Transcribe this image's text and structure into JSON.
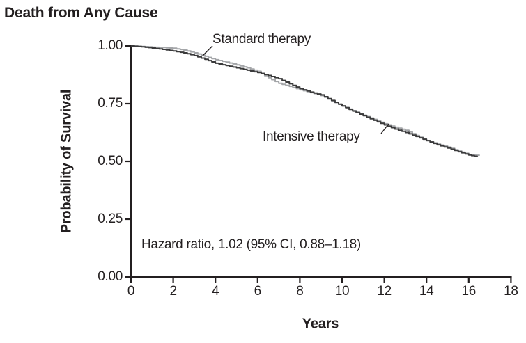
{
  "figure": {
    "title": "Death from Any Cause"
  },
  "chart_data": {
    "type": "line",
    "chart_style": "kaplan-meier-step-survival",
    "title": "Death from Any Cause",
    "xlabel": "Years",
    "ylabel": "Probability of Survival",
    "xlim": [
      0,
      18
    ],
    "ylim": [
      0.0,
      1.0
    ],
    "xticks": [
      0,
      2,
      4,
      6,
      8,
      10,
      12,
      14,
      16,
      18
    ],
    "yticks": [
      1.0,
      0.75,
      0.5,
      0.25,
      0.0
    ],
    "ytick_labels": [
      "1.00",
      "0.75",
      "0.50",
      "0.25",
      "0.00"
    ],
    "grid": false,
    "legend_position": "inline-curve-labels",
    "annotation": "Hazard ratio, 1.02 (95% CI, 0.88–1.18)",
    "colors": {
      "standard": "#a4a6a9",
      "intensive": "#3a3a3b",
      "axis": "#231f20",
      "text": "#231f20"
    },
    "series": [
      {
        "name": "Standard therapy",
        "color_key": "standard",
        "x": [
          0,
          0.5,
          1,
          1.5,
          2,
          2.5,
          3,
          3.5,
          4,
          4.5,
          5,
          5.5,
          6,
          6.5,
          7,
          7.5,
          8,
          8.5,
          9,
          9.5,
          10,
          10.5,
          11,
          11.5,
          12,
          12.5,
          13,
          13.5,
          14,
          14.5,
          15,
          15.5,
          16,
          16.5
        ],
        "y": [
          1.0,
          0.998,
          0.995,
          0.993,
          0.99,
          0.982,
          0.97,
          0.955,
          0.94,
          0.93,
          0.918,
          0.905,
          0.89,
          0.862,
          0.838,
          0.825,
          0.81,
          0.798,
          0.785,
          0.762,
          0.74,
          0.72,
          0.7,
          0.682,
          0.663,
          0.648,
          0.635,
          0.612,
          0.59,
          0.575,
          0.562,
          0.545,
          0.53,
          0.525
        ]
      },
      {
        "name": "Intensive therapy",
        "color_key": "intensive",
        "x": [
          0,
          0.5,
          1,
          1.5,
          2,
          2.5,
          3,
          3.5,
          4,
          4.5,
          5,
          5.5,
          6,
          6.5,
          7,
          7.5,
          8,
          8.5,
          9,
          9.5,
          10,
          10.5,
          11,
          11.5,
          12,
          12.5,
          13,
          13.5,
          14,
          14.5,
          15,
          15.5,
          16,
          16.4
        ],
        "y": [
          1.0,
          0.996,
          0.991,
          0.985,
          0.978,
          0.97,
          0.958,
          0.942,
          0.925,
          0.915,
          0.905,
          0.895,
          0.885,
          0.872,
          0.858,
          0.836,
          0.815,
          0.8,
          0.788,
          0.764,
          0.74,
          0.718,
          0.698,
          0.678,
          0.658,
          0.64,
          0.625,
          0.608,
          0.59,
          0.572,
          0.558,
          0.542,
          0.528,
          0.52
        ]
      }
    ]
  }
}
